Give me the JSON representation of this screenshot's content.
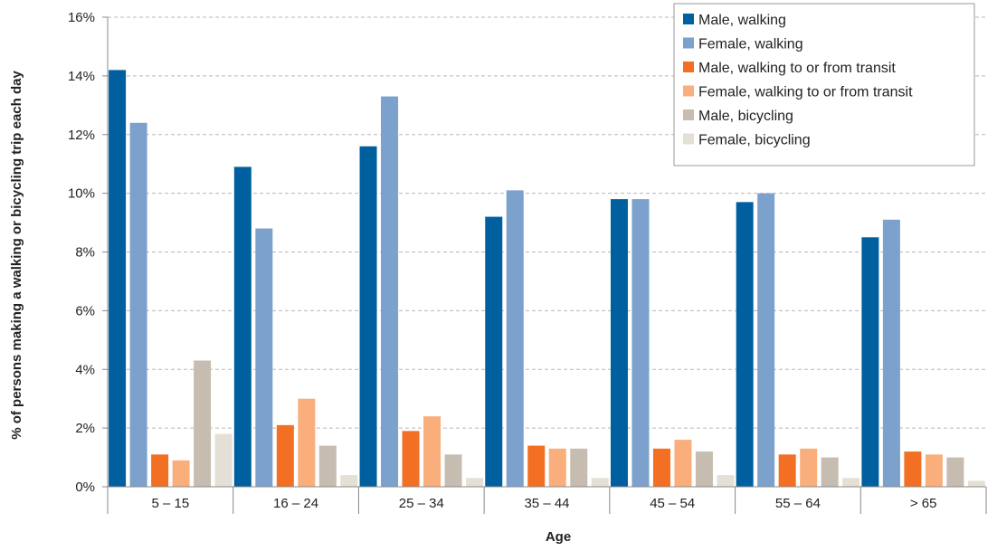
{
  "chart_data": {
    "type": "bar",
    "xlabel": "Age",
    "ylabel": "% of persons making a walking or bicycling trip each day",
    "ylim": [
      0,
      16
    ],
    "yticks": [
      "0%",
      "2%",
      "4%",
      "6%",
      "8%",
      "10%",
      "12%",
      "14%",
      "16%"
    ],
    "grid": true,
    "legend_position": "top-right",
    "categories": [
      "5 – 15",
      "16 – 24",
      "25 – 34",
      "35 – 44",
      "45 – 54",
      "55 – 64",
      "> 65"
    ],
    "series": [
      {
        "name": "Male, walking",
        "color": "#00609f",
        "values": [
          14.2,
          10.9,
          11.6,
          9.2,
          9.8,
          9.7,
          8.5
        ]
      },
      {
        "name": "Female, walking",
        "color": "#7ba1cc",
        "values": [
          12.4,
          8.8,
          13.3,
          10.1,
          9.8,
          10.0,
          9.1
        ]
      },
      {
        "name": "Male, walking to or from transit",
        "color": "#f26f24",
        "values": [
          1.1,
          2.1,
          1.9,
          1.4,
          1.3,
          1.1,
          1.2
        ]
      },
      {
        "name": "Female, walking to or from transit",
        "color": "#f9ae7c",
        "values": [
          0.9,
          3.0,
          2.4,
          1.3,
          1.6,
          1.3,
          1.1
        ]
      },
      {
        "name": "Male, bicycling",
        "color": "#c6bdb0",
        "values": [
          4.3,
          1.4,
          1.1,
          1.3,
          1.2,
          1.0,
          1.0
        ]
      },
      {
        "name": "Female, bicycling",
        "color": "#e5e0d6",
        "values": [
          1.8,
          0.4,
          0.3,
          0.3,
          0.4,
          0.3,
          0.2
        ]
      }
    ]
  }
}
